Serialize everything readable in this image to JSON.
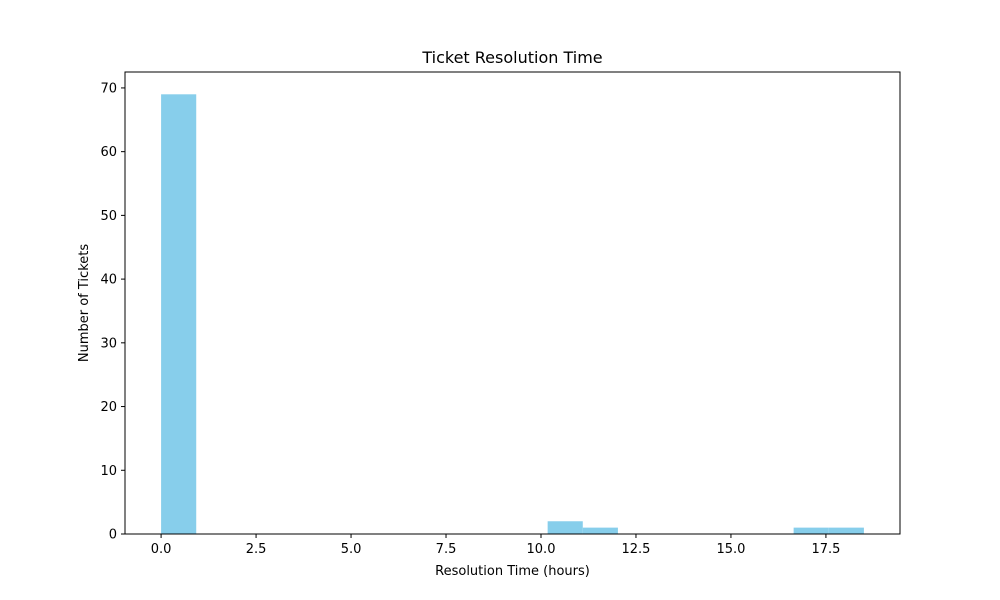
{
  "chart_data": {
    "type": "bar",
    "title": "Ticket Resolution Time",
    "xlabel": "Resolution Time (hours)",
    "ylabel": "Number of Tickets",
    "xlim": [
      -0.95,
      19.45
    ],
    "ylim": [
      0,
      72.5
    ],
    "xticks": [
      0,
      2.5,
      5,
      7.5,
      10,
      12.5,
      15,
      17.5
    ],
    "xtick_labels": [
      "0.0",
      "2.5",
      "5.0",
      "7.5",
      "10.0",
      "12.5",
      "15.0",
      "17.5"
    ],
    "yticks": [
      0,
      10,
      20,
      30,
      40,
      50,
      60,
      70
    ],
    "ytick_labels": [
      "0",
      "10",
      "20",
      "30",
      "40",
      "50",
      "60",
      "70"
    ],
    "bin_start": 0,
    "bin_width": 0.925,
    "values": [
      69,
      0,
      0,
      0,
      0,
      0,
      0,
      0,
      0,
      0,
      0,
      2,
      1,
      0,
      0,
      0,
      0,
      0,
      1,
      1
    ],
    "bar_color": "#87CEEB",
    "grid": false,
    "legend": false
  }
}
